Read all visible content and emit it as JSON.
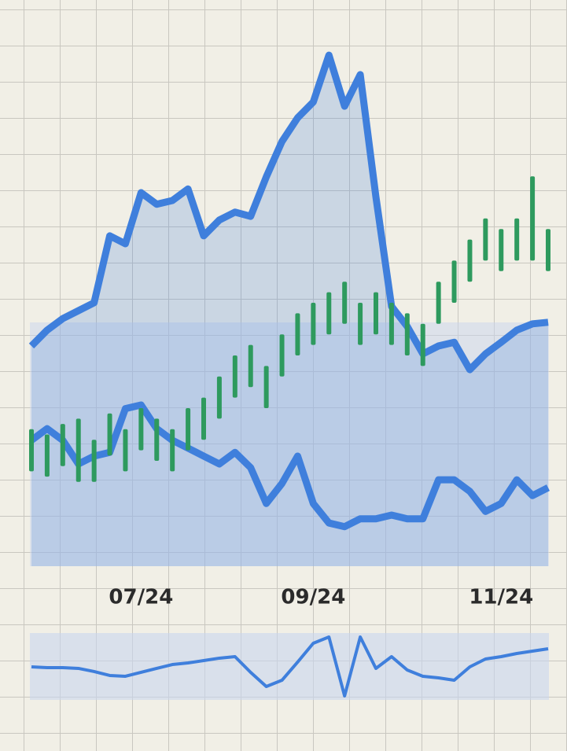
{
  "chart_data": [
    {
      "type": "line",
      "categories": [
        null,
        null,
        null,
        null,
        null,
        null,
        null,
        "07/24",
        null,
        null,
        null,
        null,
        null,
        null,
        null,
        null,
        null,
        null,
        "09/24",
        null,
        null,
        null,
        null,
        null,
        null,
        null,
        null,
        null,
        null,
        null,
        "11/24",
        null,
        null,
        null
      ],
      "ylim": [
        0,
        100
      ],
      "series": [
        {
          "color": "#3f7fdc",
          "fill": true,
          "values": [
            41.8,
            44.8,
            47.0,
            48.5,
            50.0,
            62.7,
            61.2,
            70.9,
            68.7,
            69.4,
            71.6,
            62.7,
            65.7,
            67.2,
            66.4,
            73.9,
            80.6,
            85.1,
            88.1,
            97.0,
            87.3,
            93.3,
            70.1,
            49.3,
            45.5,
            40.3,
            41.8,
            42.5,
            37.3,
            40.3,
            42.5,
            44.8,
            46.0,
            46.3
          ]
        },
        {
          "color": "#3f7fdc",
          "fill": false,
          "values": [
            23.9,
            26.1,
            23.9,
            19.4,
            20.9,
            21.6,
            29.9,
            30.6,
            26.1,
            23.9,
            22.4,
            20.9,
            19.4,
            21.6,
            18.7,
            11.9,
            15.7,
            20.9,
            11.9,
            8.2,
            7.5,
            9.0,
            9.0,
            9.7,
            9.0,
            9.0,
            16.4,
            16.4,
            14.2,
            10.4,
            11.9,
            16.4,
            13.4,
            14.9
          ]
        }
      ],
      "ranges": {
        "color": "#2e9a5e",
        "low": [
          18,
          17,
          19,
          16,
          16,
          21,
          18,
          22,
          20,
          18,
          22,
          24,
          28,
          32,
          34,
          30,
          36,
          40,
          42,
          44,
          46,
          42,
          44,
          42,
          40,
          38,
          46,
          50,
          54,
          58,
          56,
          58,
          58,
          56
        ],
        "high": [
          26,
          25,
          27,
          28,
          24,
          29,
          26,
          30,
          28,
          26,
          30,
          32,
          36,
          40,
          42,
          38,
          44,
          48,
          50,
          52,
          54,
          50,
          52,
          50,
          48,
          46,
          54,
          58,
          62,
          66,
          64,
          66,
          74,
          64
        ]
      }
    },
    {
      "type": "line",
      "ylim": [
        0,
        100
      ],
      "series": [
        {
          "color": "#3f7fdc",
          "fill": false,
          "values": [
            49.4,
            48.2,
            48.2,
            47.1,
            42.4,
            36.5,
            35.3,
            41.2,
            47.1,
            52.9,
            55.3,
            58.8,
            62.4,
            64.7,
            41.2,
            20.0,
            29.4,
            56.5,
            84.7,
            94.1,
            5.9,
            94.1,
            47.1,
            64.7,
            44.7,
            35.3,
            32.9,
            29.4,
            49.4,
            61.2,
            64.7,
            69.4,
            72.9,
            76.5
          ]
        }
      ]
    }
  ]
}
